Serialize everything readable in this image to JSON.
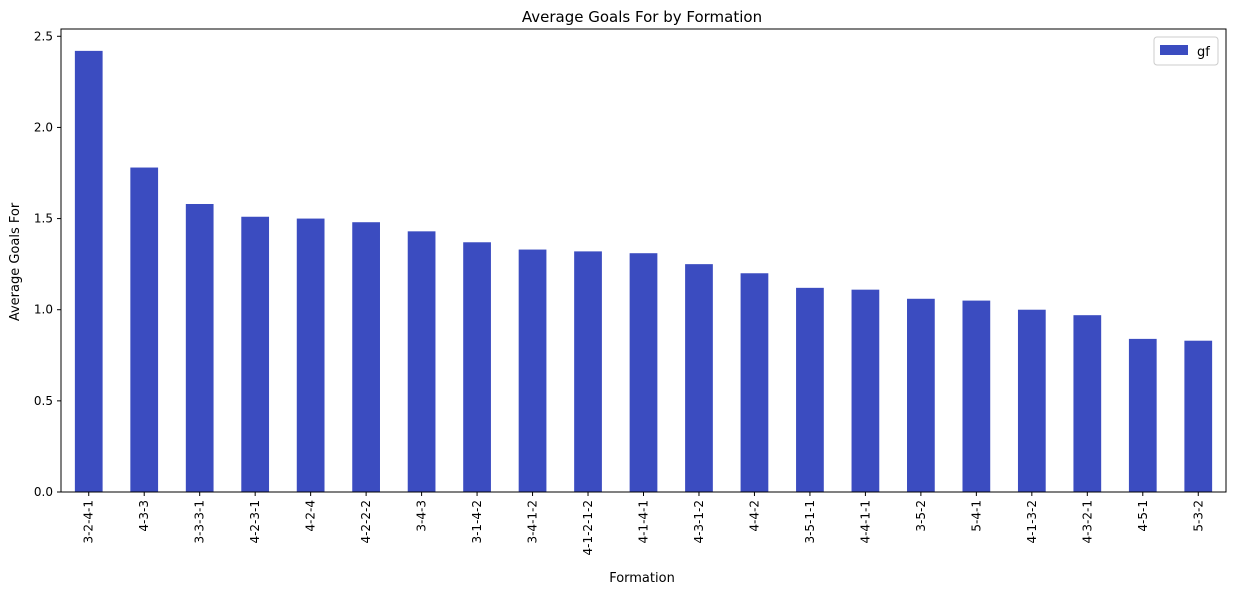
{
  "chart_data": {
    "type": "bar",
    "title": "Average Goals For by Formation",
    "xlabel": "Formation",
    "ylabel": "Average Goals For",
    "ylim": [
      0,
      2.54
    ],
    "yticks": [
      "0.0",
      "0.5",
      "1.0",
      "1.5",
      "2.0",
      "2.5"
    ],
    "categories": [
      "3-2-4-1",
      "4-3-3",
      "3-3-3-1",
      "4-2-3-1",
      "4-2-4",
      "4-2-2-2",
      "3-4-3",
      "3-1-4-2",
      "3-4-1-2",
      "4-1-2-1-2",
      "4-1-4-1",
      "4-3-1-2",
      "4-4-2",
      "3-5-1-1",
      "4-4-1-1",
      "3-5-2",
      "5-4-1",
      "4-1-3-2",
      "4-3-2-1",
      "4-5-1",
      "5-3-2"
    ],
    "series": [
      {
        "name": "gf",
        "color": "#3b4cc0",
        "values": [
          2.42,
          1.78,
          1.58,
          1.51,
          1.5,
          1.48,
          1.43,
          1.37,
          1.33,
          1.32,
          1.31,
          1.25,
          1.2,
          1.12,
          1.11,
          1.06,
          1.05,
          1.0,
          0.97,
          0.84,
          0.83
        ]
      }
    ],
    "legend": {
      "position": "top-right"
    },
    "grid": false
  }
}
